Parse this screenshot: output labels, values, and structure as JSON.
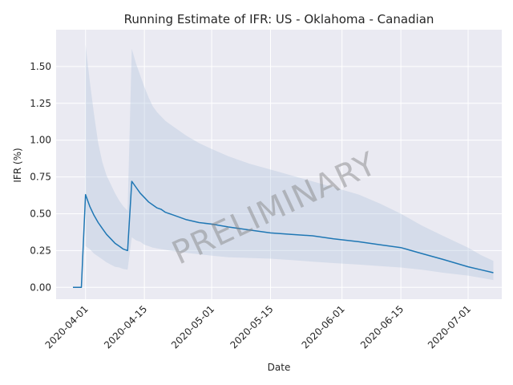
{
  "chart_data": {
    "type": "line",
    "title": "Running Estimate of IFR: US - Oklahoma - Canadian",
    "xlabel": "Date",
    "ylabel": "IFR (%)",
    "xlim": [
      "2020-03-25",
      "2020-07-09"
    ],
    "ylim": [
      -0.08,
      1.75
    ],
    "x_ticks": [
      "2020-04-01",
      "2020-04-15",
      "2020-05-01",
      "2020-05-15",
      "2020-06-01",
      "2020-06-15",
      "2020-07-01"
    ],
    "y_ticks": [
      "0.00",
      "0.25",
      "0.50",
      "0.75",
      "1.00",
      "1.25",
      "1.50"
    ],
    "grid": true,
    "watermark": "PRELIMINARY",
    "colors": {
      "line": "#1f77b4",
      "band": "#b0c4de",
      "background": "#eaeaf2",
      "grid": "#ffffff"
    },
    "series": [
      {
        "x": [
          "2020-03-29",
          "2020-03-31",
          "2020-04-01",
          "2020-04-02",
          "2020-04-03",
          "2020-04-04",
          "2020-04-05",
          "2020-04-06",
          "2020-04-07",
          "2020-04-08",
          "2020-04-09",
          "2020-04-10",
          "2020-04-11",
          "2020-04-12",
          "2020-04-13",
          "2020-04-14",
          "2020-04-15",
          "2020-04-16",
          "2020-04-17",
          "2020-04-18",
          "2020-04-19",
          "2020-04-20",
          "2020-04-22",
          "2020-04-25",
          "2020-04-28",
          "2020-05-01",
          "2020-05-05",
          "2020-05-10",
          "2020-05-15",
          "2020-05-20",
          "2020-05-25",
          "2020-05-30",
          "2020-06-05",
          "2020-06-10",
          "2020-06-15",
          "2020-06-20",
          "2020-06-25",
          "2020-07-01",
          "2020-07-04",
          "2020-07-07"
        ],
        "y": [
          0.0,
          0.0,
          0.63,
          0.55,
          0.49,
          0.44,
          0.4,
          0.36,
          0.33,
          0.3,
          0.28,
          0.26,
          0.25,
          0.72,
          0.68,
          0.64,
          0.61,
          0.58,
          0.56,
          0.54,
          0.53,
          0.51,
          0.49,
          0.46,
          0.44,
          0.43,
          0.41,
          0.39,
          0.37,
          0.36,
          0.35,
          0.33,
          0.31,
          0.29,
          0.27,
          0.23,
          0.19,
          0.14,
          0.12,
          0.1
        ],
        "ci_x": [
          "2020-04-01",
          "2020-04-02",
          "2020-04-03",
          "2020-04-04",
          "2020-04-05",
          "2020-04-06",
          "2020-04-07",
          "2020-04-08",
          "2020-04-09",
          "2020-04-10",
          "2020-04-11",
          "2020-04-12",
          "2020-04-13",
          "2020-04-14",
          "2020-04-15",
          "2020-04-16",
          "2020-04-17",
          "2020-04-18",
          "2020-04-19",
          "2020-04-20",
          "2020-04-22",
          "2020-04-25",
          "2020-04-28",
          "2020-05-01",
          "2020-05-05",
          "2020-05-10",
          "2020-05-15",
          "2020-05-20",
          "2020-05-25",
          "2020-05-30",
          "2020-06-05",
          "2020-06-10",
          "2020-06-15",
          "2020-06-20",
          "2020-06-25",
          "2020-07-01",
          "2020-07-04",
          "2020-07-07"
        ],
        "ci_upper": [
          1.65,
          1.4,
          1.18,
          0.98,
          0.85,
          0.76,
          0.7,
          0.64,
          0.59,
          0.55,
          0.52,
          1.62,
          1.52,
          1.44,
          1.36,
          1.29,
          1.23,
          1.19,
          1.16,
          1.13,
          1.09,
          1.03,
          0.98,
          0.94,
          0.89,
          0.84,
          0.8,
          0.76,
          0.72,
          0.68,
          0.63,
          0.57,
          0.5,
          0.42,
          0.35,
          0.27,
          0.22,
          0.18
        ],
        "ci_lower": [
          0.28,
          0.26,
          0.23,
          0.21,
          0.19,
          0.17,
          0.155,
          0.14,
          0.135,
          0.125,
          0.12,
          0.34,
          0.32,
          0.31,
          0.29,
          0.28,
          0.27,
          0.265,
          0.26,
          0.255,
          0.245,
          0.235,
          0.225,
          0.215,
          0.205,
          0.2,
          0.195,
          0.185,
          0.175,
          0.165,
          0.155,
          0.145,
          0.135,
          0.12,
          0.1,
          0.08,
          0.065,
          0.05
        ]
      }
    ]
  }
}
